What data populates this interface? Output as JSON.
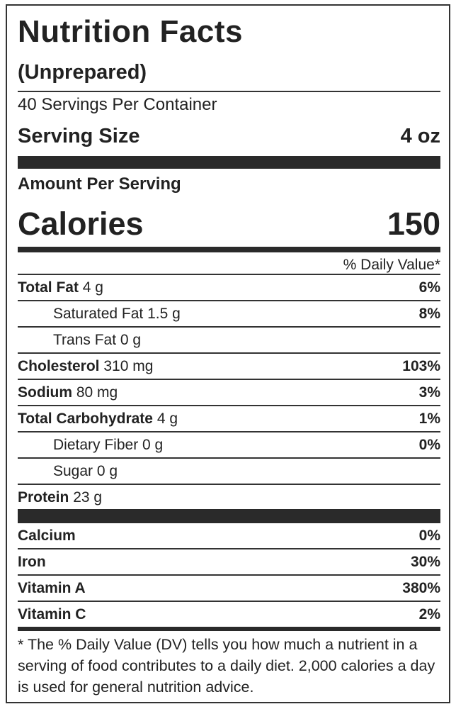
{
  "header": {
    "title": "Nutrition Facts",
    "subtitle": "(Unprepared)",
    "servings": "40 Servings Per Container",
    "serving_size_label": "Serving Size",
    "serving_size": "4 oz",
    "amount_label": "Amount Per Serving",
    "calories_label": "Calories",
    "calories": "150",
    "dv_header": "% Daily Value*"
  },
  "nutrients": [
    {
      "name": "Total Fat",
      "amount": "4 g",
      "dv": "6%"
    },
    {
      "name": "Saturated Fat",
      "amount": "1.5 g",
      "dv": "8%"
    },
    {
      "name": "Trans Fat",
      "amount": "0 g"
    },
    {
      "name": "Cholesterol",
      "amount": "310 mg",
      "dv": "103%"
    },
    {
      "name": "Sodium",
      "amount": "80 mg",
      "dv": "3%"
    },
    {
      "name": "Total Carbohydrate",
      "amount": "4 g",
      "dv": "1%"
    },
    {
      "name": "Dietary Fiber",
      "amount": "0 g",
      "dv": "0%"
    },
    {
      "name": "Sugar",
      "amount": "0 g"
    },
    {
      "name": "Protein",
      "amount": "23 g"
    }
  ],
  "vitamins": [
    {
      "name": "Calcium",
      "dv": "0%"
    },
    {
      "name": "Iron",
      "dv": "30%"
    },
    {
      "name": "Vitamin A",
      "dv": "380%"
    },
    {
      "name": "Vitamin C",
      "dv": "2%"
    }
  ],
  "footnote": "* The % Daily Value (DV) tells you how much a nutrient in a serving of food contributes to a daily diet. 2,000 calories a day is used for general nutrition advice."
}
